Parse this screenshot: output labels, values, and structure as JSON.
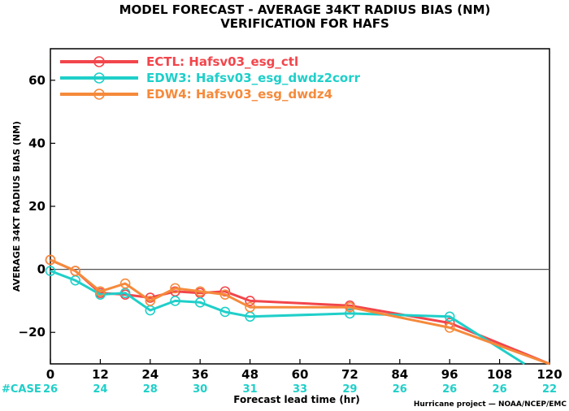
{
  "chart_data": {
    "type": "line",
    "title": "MODEL FORECAST - AVERAGE 34KT RADIUS BIAS (NM)",
    "subtitle": "VERIFICATION FOR HAFS",
    "xlabel": "Forecast lead time (hr)",
    "ylabel": "AVERAGE 34KT RADIUS BIAS (NM)",
    "xlim": [
      0,
      120
    ],
    "ylim": [
      -30,
      70
    ],
    "xticks": [
      0,
      12,
      24,
      36,
      48,
      60,
      72,
      84,
      96,
      108,
      120
    ],
    "xtick_labels": [
      "0",
      "12",
      "24",
      "36",
      "48",
      "60",
      "72",
      "84",
      "96",
      "108",
      "120"
    ],
    "yticks": [
      -20,
      0,
      20,
      40,
      60
    ],
    "ytick_labels": [
      "−20",
      "0",
      "20",
      "40",
      "60"
    ],
    "zero_line": true,
    "grid": false,
    "legend_position": "top-left",
    "case_label": "#CASE",
    "case_x": [
      0,
      12,
      24,
      36,
      48,
      60,
      72,
      84,
      96,
      108,
      120
    ],
    "case_counts": [
      "26",
      "24",
      "28",
      "30",
      "31",
      "33",
      "29",
      "26",
      "26",
      "26",
      "22"
    ],
    "credit": "Hurricane project — NOAA/NCEP/EMC",
    "series": [
      {
        "name": "ECTL: Hafsv03_esg_ctl",
        "color": "#f2454b",
        "x": [
          0,
          6,
          12,
          18,
          24,
          30,
          36,
          42,
          48,
          72,
          96,
          120
        ],
        "y": [
          3,
          -0.5,
          -7.5,
          -8,
          -9,
          -7,
          -7.5,
          -7,
          -10,
          -11.5,
          -17,
          -30
        ],
        "markers": true
      },
      {
        "name": "EDW3: Hafsv03_esg_dwdz2corr",
        "color": "#1fcfc9",
        "x": [
          0,
          6,
          12,
          18,
          24,
          30,
          36,
          42,
          48,
          72,
          96,
          114
        ],
        "y": [
          -0.5,
          -3.5,
          -8,
          -7.5,
          -13,
          -10,
          -10.5,
          -13.5,
          -15,
          -14,
          -15,
          -30
        ],
        "markers": true
      },
      {
        "name": "EDW4: Hafsv03_esg_dwdz4",
        "color": "#f58a3b",
        "x": [
          0,
          6,
          12,
          18,
          24,
          30,
          36,
          42,
          48,
          72,
          96,
          120
        ],
        "y": [
          3,
          -0.5,
          -7,
          -4.5,
          -10,
          -6,
          -7,
          -8,
          -12,
          -12,
          -18.5,
          -30
        ],
        "markers": true
      }
    ]
  }
}
